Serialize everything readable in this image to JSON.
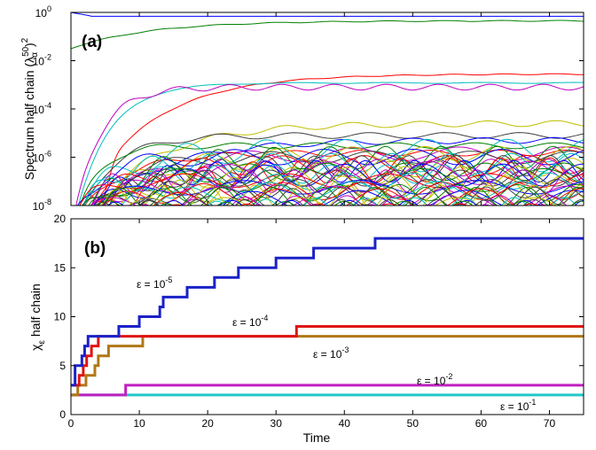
{
  "chart_data": [
    {
      "type": "line",
      "panel_label": "(a)",
      "ylabel": "Spectrum half chain (λ",
      "ylabel_sup": "50",
      "ylabel_sub": "α",
      "ylabel_tail": ")",
      "ylabel_sq": "2",
      "y_scale": "log",
      "ylim": [
        1e-08,
        1
      ],
      "xlim": [
        0,
        75
      ],
      "yticks": [
        {
          "base": "10",
          "exp": "0"
        },
        {
          "base": "10",
          "exp": "-2"
        },
        {
          "base": "10",
          "exp": "-4"
        },
        {
          "base": "10",
          "exp": "-6"
        },
        {
          "base": "10",
          "exp": "-8"
        }
      ],
      "grid": false,
      "series_count": 60,
      "dominant_values": [
        1,
        0.45,
        0.0028,
        0.0012,
        0.0008,
        2.5e-05,
        8e-06,
        5e-06,
        3e-06,
        1.5e-06
      ]
    },
    {
      "type": "line",
      "step": true,
      "panel_label": "(b)",
      "xlabel": "Time",
      "ylabel": "χ",
      "ylabel_sub": "ε",
      "ylabel_tail": " half chain",
      "xlim": [
        0,
        75
      ],
      "ylim": [
        0,
        20
      ],
      "xticks": [
        "0",
        "10",
        "20",
        "30",
        "40",
        "50",
        "60",
        "70"
      ],
      "yticks": [
        "0",
        "5",
        "10",
        "15",
        "20"
      ],
      "grid": false,
      "series": [
        {
          "name": "ε = 10",
          "exp": "-5",
          "color": "#1a22c8",
          "points": [
            [
              0,
              3
            ],
            [
              0.6,
              5
            ],
            [
              1.6,
              6
            ],
            [
              2.0,
              7
            ],
            [
              2.5,
              8
            ],
            [
              7.0,
              9
            ],
            [
              10.0,
              10
            ],
            [
              13.0,
              11
            ],
            [
              13.5,
              12
            ],
            [
              17.0,
              13
            ],
            [
              21.0,
              14
            ],
            [
              24.5,
              15
            ],
            [
              30.0,
              16
            ],
            [
              35.5,
              17
            ],
            [
              44.5,
              18
            ],
            [
              75,
              18
            ]
          ]
        },
        {
          "name": "ε = 10",
          "exp": "-4",
          "color": "#e01414",
          "points": [
            [
              0,
              3
            ],
            [
              1.2,
              4
            ],
            [
              1.8,
              5
            ],
            [
              2.3,
              6
            ],
            [
              3.0,
              7
            ],
            [
              4.0,
              8
            ],
            [
              33.0,
              9
            ],
            [
              75,
              9
            ]
          ]
        },
        {
          "name": "ε = 10",
          "exp": "-3",
          "color": "#b07818",
          "points": [
            [
              0,
              2
            ],
            [
              1.0,
              3
            ],
            [
              2.2,
              4
            ],
            [
              3.5,
              5
            ],
            [
              4.0,
              6
            ],
            [
              5.5,
              7
            ],
            [
              10.5,
              8
            ],
            [
              75,
              8
            ]
          ]
        },
        {
          "name": "ε = 10",
          "exp": "-2",
          "color": "#c020c0",
          "points": [
            [
              0,
              2
            ],
            [
              8.0,
              3
            ],
            [
              75,
              3
            ]
          ]
        },
        {
          "name": "ε = 10",
          "exp": "-1",
          "color": "#20c8c8",
          "points": [
            [
              0,
              2
            ],
            [
              75,
              2
            ]
          ]
        }
      ]
    }
  ]
}
